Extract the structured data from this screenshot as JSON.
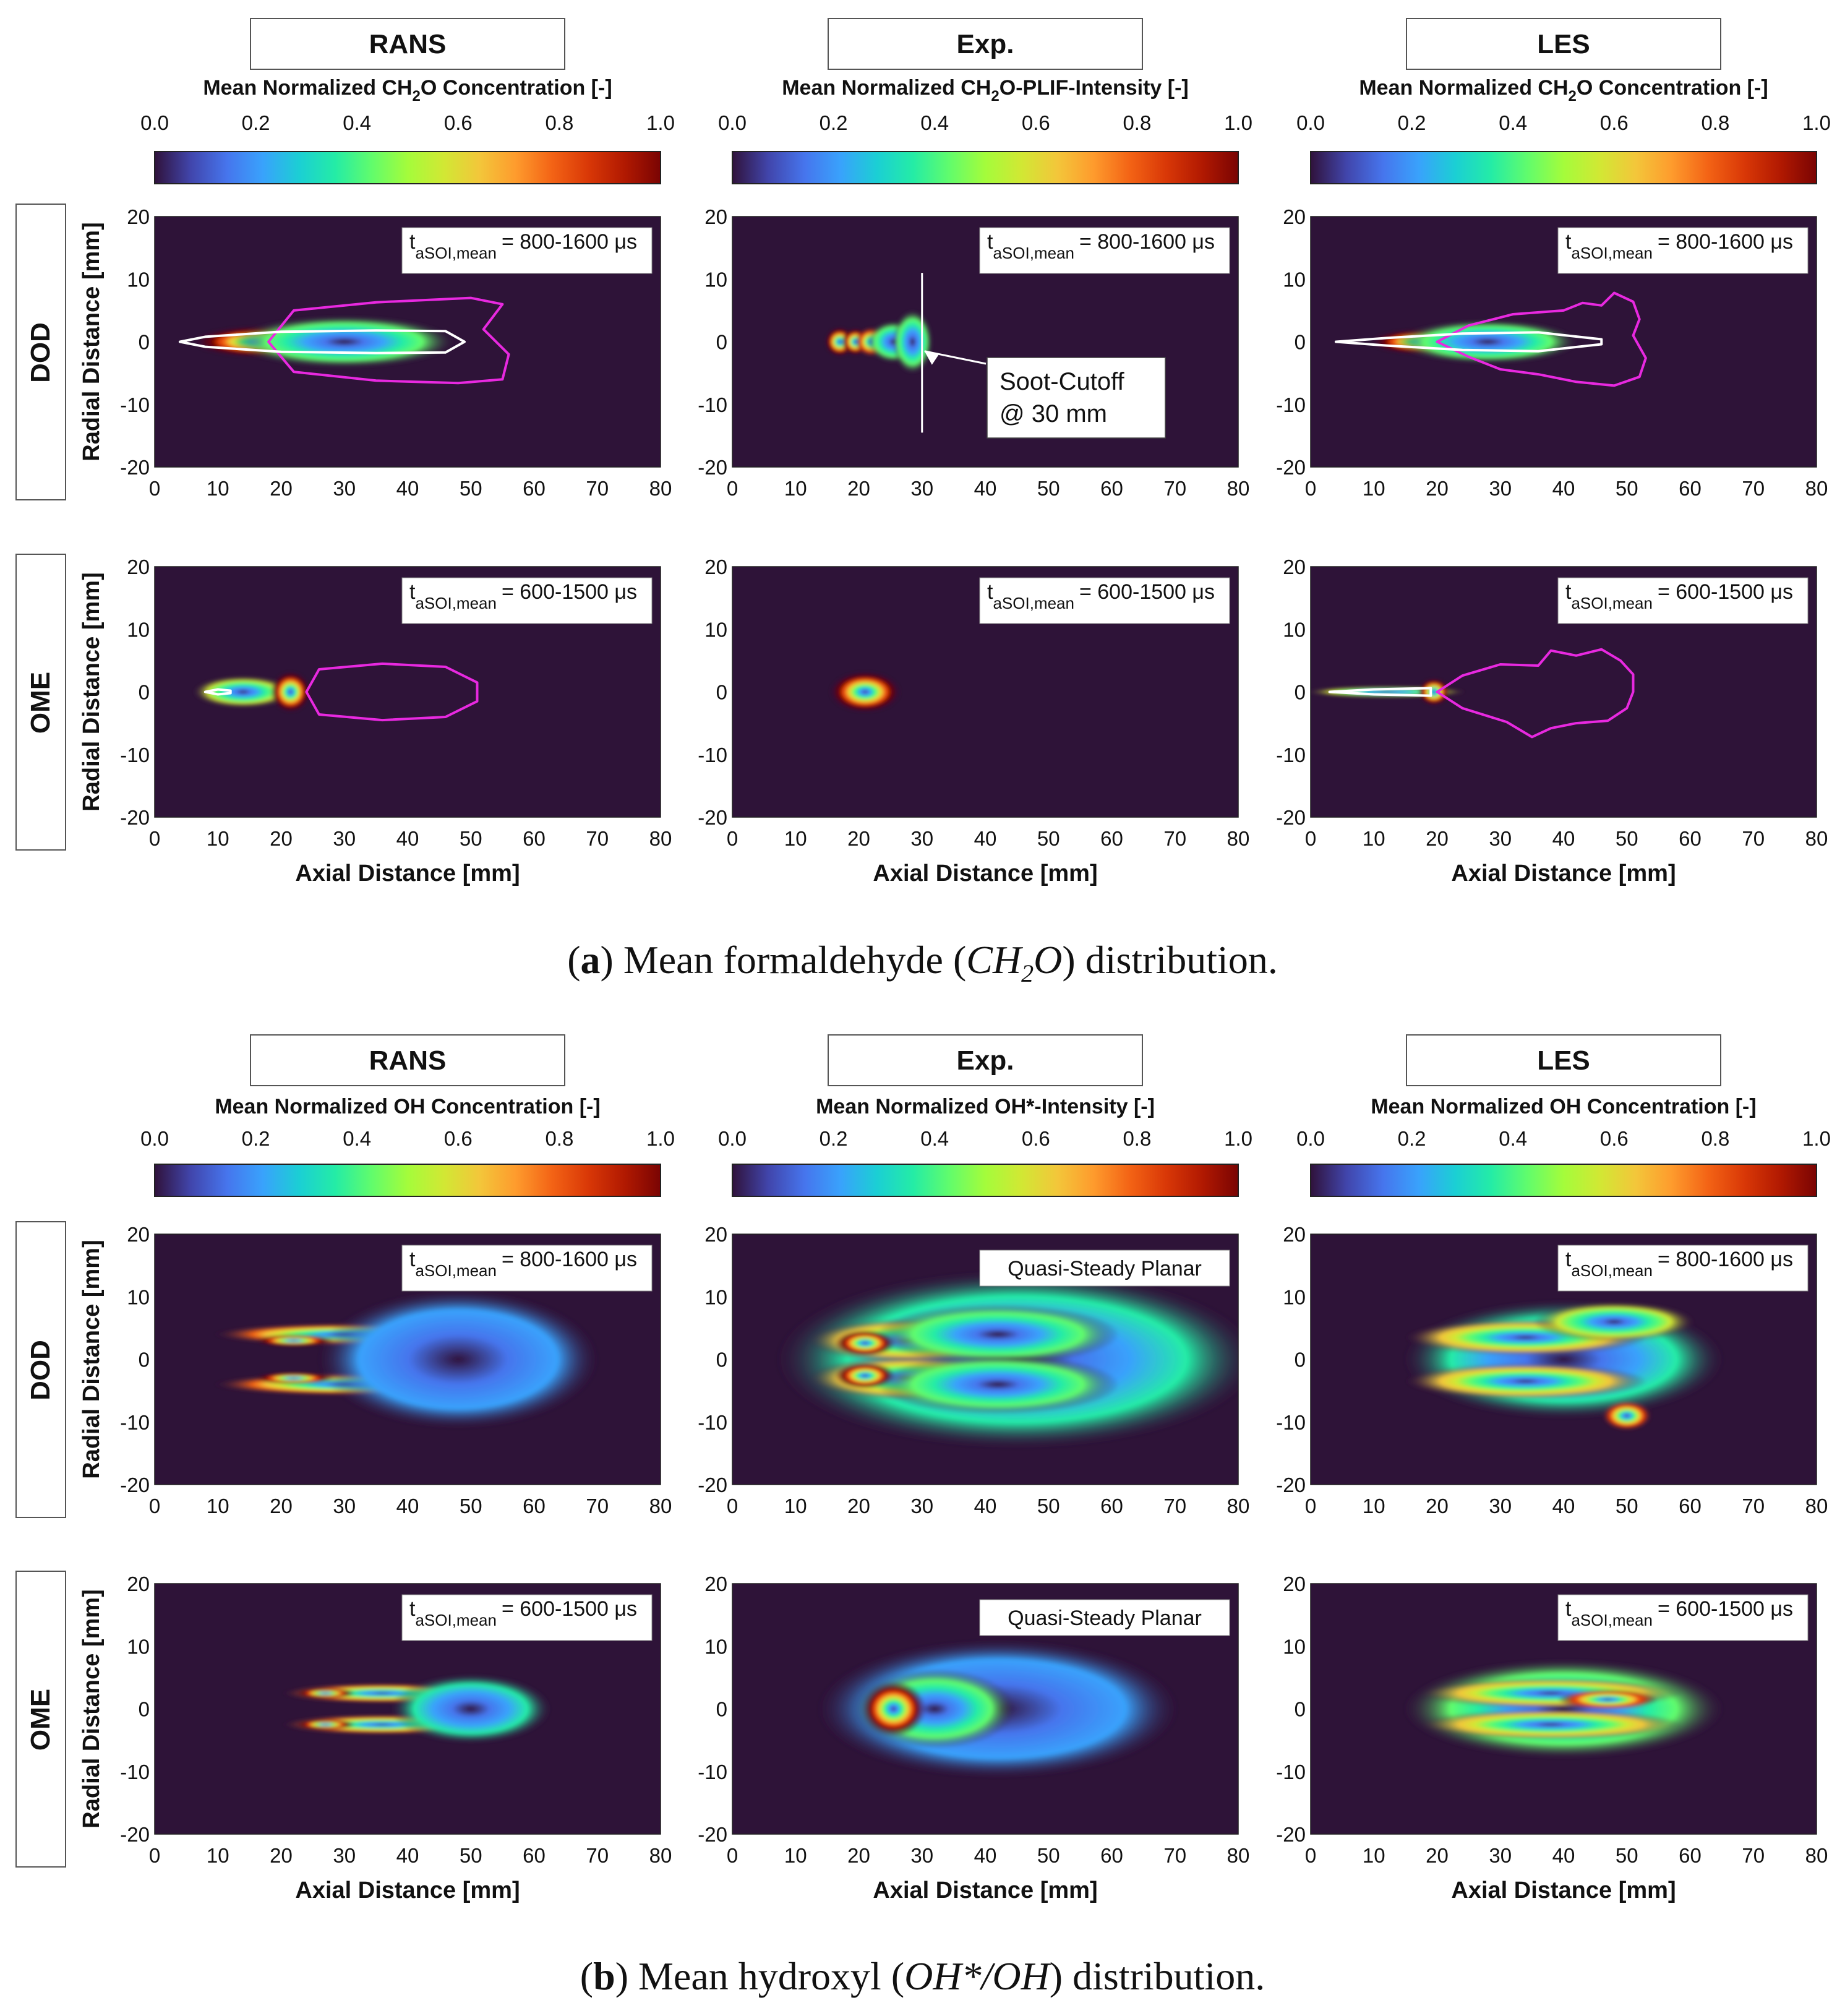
{
  "colors": {
    "background": "#2e1338",
    "contour_white": "#ffffff",
    "contour_magenta": "#e829e0",
    "colormap": [
      "#30123b",
      "#4145ab",
      "#4675ed",
      "#39a2fc",
      "#1bcfd4",
      "#24eca6",
      "#61fc6c",
      "#a4fc3b",
      "#d1e834",
      "#f3c63a",
      "#fe9b2d",
      "#f36315",
      "#d93807",
      "#b11901",
      "#7a0403"
    ]
  },
  "captions": {
    "a": {
      "label": "a",
      "pre": ") Mean formaldehyde (",
      "formula_a": "CH",
      "formula_sub": "2",
      "formula_b": "O",
      "post": ") distribution."
    },
    "b": {
      "label": "b",
      "pre": ") Mean hydroxyl (",
      "formula": "OH*/OH",
      "post": ") distribution."
    }
  },
  "chart_data": [
    {
      "panel": "a",
      "type": "heatmap",
      "column_titles": [
        "RANS",
        "Exp.",
        "LES"
      ],
      "colorbar_titles": [
        {
          "pre": "Mean Normalized CH",
          "sub": "2",
          "post": "O Concentration [-]"
        },
        {
          "pre": "Mean Normalized CH",
          "sub": "2",
          "post": "O-PLIF-Intensity [-]"
        },
        {
          "pre": "Mean Normalized CH",
          "sub": "2",
          "post": "O Concentration [-]"
        }
      ],
      "colorbar_ticks": [
        "0.0",
        "0.2",
        "0.4",
        "0.6",
        "0.8",
        "1.0"
      ],
      "row_labels": [
        "DOD",
        "OME"
      ],
      "xlabel": "Axial Distance [mm]",
      "ylabel": "Radial Distance [mm]",
      "xlim": [
        0,
        80
      ],
      "ylim": [
        -20,
        20
      ],
      "x_ticks": [
        "0",
        "10",
        "20",
        "30",
        "40",
        "50",
        "60",
        "70",
        "80"
      ],
      "y_ticks": [
        "20",
        "10",
        "0",
        "-10",
        "-20"
      ],
      "annotation": {
        "line1": "Soot-Cutoff",
        "line2": "@ 30 mm",
        "cutoff_x": 30
      },
      "plots": [
        {
          "row": "DOD",
          "col": "RANS",
          "label": {
            "t": "t",
            "sub": "aSOI,mean",
            "rest": "= 800-1600 μs"
          },
          "blobs": [
            {
              "x": 17,
              "y": 0,
              "sx": 7,
              "sy": 1.6,
              "v": 1.0
            },
            {
              "x": 30,
              "y": 0,
              "sx": 11,
              "sy": 2.6,
              "v": 0.45
            }
          ],
          "white_contour": [
            [
              4,
              0
            ],
            [
              8,
              0.8
            ],
            [
              20,
              1.6
            ],
            [
              35,
              1.8
            ],
            [
              46,
              1.7
            ],
            [
              49,
              0
            ],
            [
              46,
              -1.7
            ],
            [
              35,
              -1.8
            ],
            [
              20,
              -1.6
            ],
            [
              8,
              -0.8
            ]
          ],
          "magenta_contour": [
            [
              18,
              0
            ],
            [
              22,
              5
            ],
            [
              35,
              6.3
            ],
            [
              50,
              7
            ],
            [
              55,
              6
            ],
            [
              52,
              2
            ],
            [
              56,
              -2
            ],
            [
              55,
              -6
            ],
            [
              48,
              -6.6
            ],
            [
              35,
              -6.2
            ],
            [
              22,
              -4.8
            ]
          ]
        },
        {
          "row": "DOD",
          "col": "Exp.",
          "label": {
            "t": "t",
            "sub": "aSOI,mean",
            "rest": "= 800-1600 μs"
          },
          "blobs": [
            {
              "x": 17,
              "y": 0,
              "sx": 1.5,
              "sy": 1.5,
              "v": 1.0
            },
            {
              "x": 19.5,
              "y": 0,
              "sx": 1.4,
              "sy": 1.4,
              "v": 0.95
            },
            {
              "x": 22,
              "y": 0,
              "sx": 1.6,
              "sy": 1.5,
              "v": 0.85
            },
            {
              "x": 25.5,
              "y": 0,
              "sx": 2.6,
              "sy": 2.1,
              "v": 0.45
            },
            {
              "x": 28.5,
              "y": 0,
              "sx": 2,
              "sy": 3.2,
              "v": 0.4
            }
          ]
        },
        {
          "row": "DOD",
          "col": "LES",
          "label": {
            "t": "t",
            "sub": "aSOI,mean",
            "rest": "= 800-1600 μs"
          },
          "blobs": [
            {
              "x": 18,
              "y": 0,
              "sx": 5.5,
              "sy": 1.3,
              "v": 1.0
            },
            {
              "x": 28,
              "y": 0,
              "sx": 9,
              "sy": 2.2,
              "v": 0.45
            }
          ],
          "white_contour": [
            [
              4,
              0
            ],
            [
              12,
              0.6
            ],
            [
              24,
              1.3
            ],
            [
              36,
              1.5
            ],
            [
              46,
              0.4
            ],
            [
              46,
              -0.4
            ],
            [
              36,
              -1.5
            ],
            [
              24,
              -1.3
            ],
            [
              12,
              -0.6
            ]
          ],
          "magenta_contour": [
            [
              20,
              0
            ],
            [
              25,
              2.6
            ],
            [
              32,
              4.4
            ],
            [
              40,
              5
            ],
            [
              43,
              6.2
            ],
            [
              46,
              5.8
            ],
            [
              48,
              7.8
            ],
            [
              51,
              6.4
            ],
            [
              52,
              3.6
            ],
            [
              51,
              1
            ],
            [
              53,
              -2.6
            ],
            [
              52,
              -5.6
            ],
            [
              48,
              -7
            ],
            [
              42,
              -6.4
            ],
            [
              36,
              -5.2
            ],
            [
              30,
              -4.4
            ],
            [
              25,
              -2.4
            ]
          ]
        },
        {
          "row": "OME",
          "col": "RANS",
          "label": {
            "t": "t",
            "sub": "aSOI,mean",
            "rest": "= 600-1500 μs"
          },
          "blobs": [
            {
              "x": 14,
              "y": 0,
              "sx": 5,
              "sy": 1.6,
              "v": 0.55
            },
            {
              "x": 21.5,
              "y": 0,
              "sx": 2,
              "sy": 2.1,
              "v": 1.0
            }
          ],
          "white_contour": [
            [
              8,
              0
            ],
            [
              10,
              0.4
            ],
            [
              12,
              0.2
            ],
            [
              12,
              -0.2
            ],
            [
              10,
              -0.4
            ]
          ],
          "magenta_contour": [
            [
              24,
              0
            ],
            [
              26,
              3.6
            ],
            [
              36,
              4.5
            ],
            [
              46,
              4
            ],
            [
              51,
              1.5
            ],
            [
              51,
              -1.5
            ],
            [
              46,
              -4
            ],
            [
              36,
              -4.5
            ],
            [
              26,
              -3.6
            ]
          ]
        },
        {
          "row": "OME",
          "col": "Exp.",
          "label": {
            "t": "t",
            "sub": "aSOI,mean",
            "rest": "= 600-1500 μs"
          },
          "blobs": [
            {
              "x": 21,
              "y": 0,
              "sx": 3.6,
              "sy": 2.1,
              "v": 1.0
            }
          ]
        },
        {
          "row": "OME",
          "col": "LES",
          "label": {
            "t": "t",
            "sub": "aSOI,mean",
            "rest": "= 600-1500 μs"
          },
          "blobs": [
            {
              "x": 12,
              "y": 0,
              "sx": 8,
              "sy": 0.55,
              "v": 0.55
            },
            {
              "x": 19.5,
              "y": 0,
              "sx": 1.6,
              "sy": 1.4,
              "v": 1.0
            }
          ],
          "white_contour": [
            [
              3,
              0
            ],
            [
              10,
              0.4
            ],
            [
              19,
              0.6
            ],
            [
              19,
              -0.6
            ],
            [
              10,
              -0.4
            ]
          ],
          "magenta_contour": [
            [
              20,
              0
            ],
            [
              24,
              2.6
            ],
            [
              30,
              4.4
            ],
            [
              36,
              4.2
            ],
            [
              38,
              6.6
            ],
            [
              42,
              5.8
            ],
            [
              46,
              6.8
            ],
            [
              49,
              5
            ],
            [
              51,
              2.8
            ],
            [
              51,
              0
            ],
            [
              50,
              -2.6
            ],
            [
              47,
              -4.6
            ],
            [
              42,
              -5
            ],
            [
              38,
              -5.8
            ],
            [
              35,
              -7.2
            ],
            [
              31,
              -4.8
            ],
            [
              24,
              -2.6
            ]
          ]
        }
      ]
    },
    {
      "panel": "b",
      "type": "heatmap",
      "column_titles": [
        "RANS",
        "Exp.",
        "LES"
      ],
      "colorbar_titles": [
        {
          "pre": "Mean Normalized OH Concentration [-]",
          "sub": "",
          "post": ""
        },
        {
          "pre": "Mean Normalized OH*-Intensity [-]",
          "sub": "",
          "post": ""
        },
        {
          "pre": "Mean Normalized OH Concentration [-]",
          "sub": "",
          "post": ""
        }
      ],
      "colorbar_ticks": [
        "0.0",
        "0.2",
        "0.4",
        "0.6",
        "0.8",
        "1.0"
      ],
      "row_labels": [
        "DOD",
        "OME"
      ],
      "xlabel": "Axial Distance [mm]",
      "ylabel": "Radial Distance [mm]",
      "xlim": [
        0,
        80
      ],
      "ylim": [
        -20,
        20
      ],
      "x_ticks": [
        "0",
        "10",
        "20",
        "30",
        "40",
        "50",
        "60",
        "70",
        "80"
      ],
      "y_ticks": [
        "20",
        "10",
        "0",
        "-10",
        "-20"
      ],
      "plots": [
        {
          "row": "DOD",
          "col": "RANS",
          "label": {
            "t": "t",
            "sub": "aSOI,mean",
            "rest": "= 800-1600 μs"
          },
          "blobs": [
            {
              "x": 30,
              "y": 4,
              "sx": 13,
              "sy": 1.1,
              "v": 0.75
            },
            {
              "x": 30,
              "y": -4,
              "sx": 13,
              "sy": 1.1,
              "v": 0.75
            },
            {
              "x": 22,
              "y": 3,
              "sx": 4,
              "sy": 0.6,
              "v": 1.0
            },
            {
              "x": 22,
              "y": -3,
              "sx": 4,
              "sy": 0.6,
              "v": 1.0
            },
            {
              "x": 48,
              "y": 0,
              "sx": 14,
              "sy": 7,
              "v": 0.22
            }
          ]
        },
        {
          "row": "DOD",
          "col": "Exp.",
          "label": {
            "t": "Quasi-Steady Planar",
            "sub": "",
            "rest": ""
          },
          "blobs": [
            {
              "x": 45,
              "y": 0,
              "sx": 24,
              "sy": 9,
              "v": 0.3
            },
            {
              "x": 28,
              "y": 3,
              "sx": 10,
              "sy": 2.2,
              "v": 0.65
            },
            {
              "x": 28,
              "y": -3,
              "sx": 10,
              "sy": 2.2,
              "v": 0.65
            },
            {
              "x": 21,
              "y": 2.6,
              "sx": 3,
              "sy": 1.3,
              "v": 1.0
            },
            {
              "x": 21,
              "y": -2.6,
              "sx": 3,
              "sy": 1.3,
              "v": 1.0
            },
            {
              "x": 42,
              "y": 4,
              "sx": 12,
              "sy": 3,
              "v": 0.45
            },
            {
              "x": 42,
              "y": -4,
              "sx": 12,
              "sy": 3,
              "v": 0.45
            }
          ]
        },
        {
          "row": "DOD",
          "col": "LES",
          "label": {
            "t": "t",
            "sub": "aSOI,mean",
            "rest": "= 800-1600 μs"
          },
          "blobs": [
            {
              "x": 40,
              "y": 0,
              "sx": 16,
              "sy": 6,
              "v": 0.3
            },
            {
              "x": 34,
              "y": 3.5,
              "sx": 12,
              "sy": 1.8,
              "v": 0.65
            },
            {
              "x": 34,
              "y": -3.5,
              "sx": 12,
              "sy": 1.8,
              "v": 0.65
            },
            {
              "x": 50,
              "y": -9,
              "sx": 2.5,
              "sy": 1.5,
              "v": 0.85
            },
            {
              "x": 48,
              "y": 6,
              "sx": 8,
              "sy": 2,
              "v": 0.5
            }
          ]
        },
        {
          "row": "OME",
          "col": "RANS",
          "label": {
            "t": "t",
            "sub": "aSOI,mean",
            "rest": "= 600-1500 μs"
          },
          "blobs": [
            {
              "x": 36,
              "y": 2.5,
              "sx": 10,
              "sy": 1,
              "v": 0.75
            },
            {
              "x": 36,
              "y": -2.5,
              "sx": 10,
              "sy": 1,
              "v": 0.75
            },
            {
              "x": 27,
              "y": 2.5,
              "sx": 3,
              "sy": 0.5,
              "v": 1.0
            },
            {
              "x": 27,
              "y": -2.5,
              "sx": 3,
              "sy": 0.5,
              "v": 1.0
            },
            {
              "x": 50,
              "y": 0,
              "sx": 8,
              "sy": 3.5,
              "v": 0.3
            }
          ]
        },
        {
          "row": "OME",
          "col": "Exp.",
          "label": {
            "t": "Quasi-Steady Planar",
            "sub": "",
            "rest": ""
          },
          "blobs": [
            {
              "x": 42,
              "y": 0,
              "sx": 18,
              "sy": 7,
              "v": 0.25
            },
            {
              "x": 32,
              "y": 0,
              "sx": 8,
              "sy": 4,
              "v": 0.45
            },
            {
              "x": 25.5,
              "y": 0,
              "sx": 3.2,
              "sy": 2.8,
              "v": 1.0
            }
          ]
        },
        {
          "row": "OME",
          "col": "LES",
          "label": {
            "t": "t",
            "sub": "aSOI,mean",
            "rest": "= 600-1500 μs"
          },
          "blobs": [
            {
              "x": 40,
              "y": 0,
              "sx": 16,
              "sy": 5,
              "v": 0.4
            },
            {
              "x": 38,
              "y": 2.5,
              "sx": 13,
              "sy": 1.5,
              "v": 0.7
            },
            {
              "x": 38,
              "y": -2.5,
              "sx": 13,
              "sy": 1.5,
              "v": 0.7
            },
            {
              "x": 47,
              "y": 1.5,
              "sx": 5,
              "sy": 1,
              "v": 0.85
            }
          ]
        }
      ]
    }
  ]
}
